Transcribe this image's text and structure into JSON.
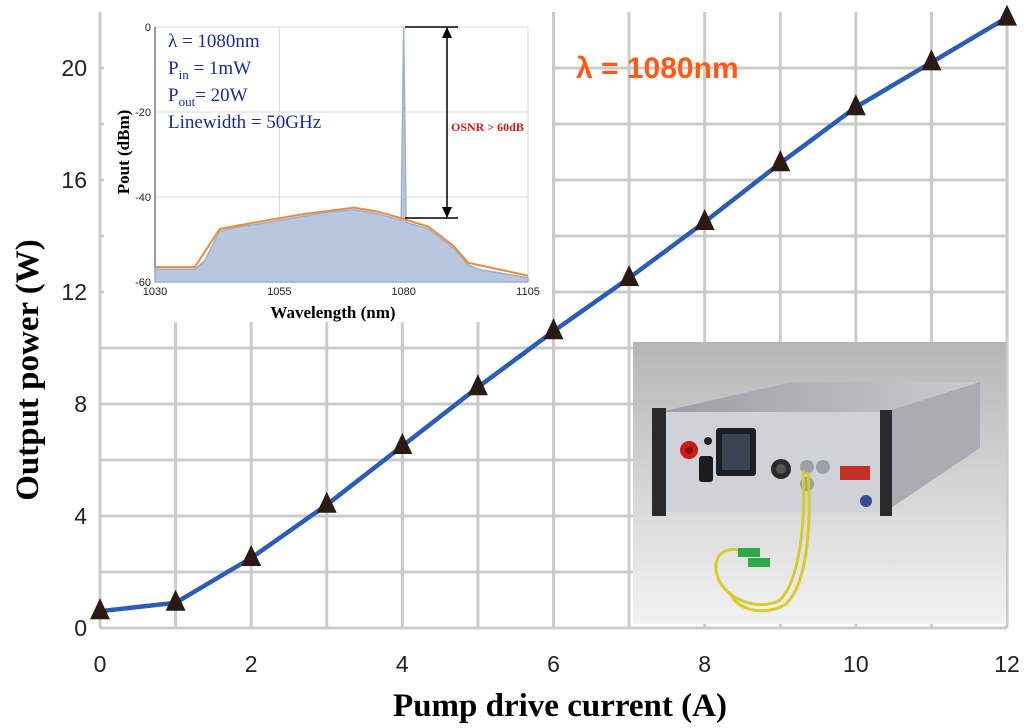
{
  "chart_data": [
    {
      "type": "line",
      "xlabel": "Pump drive current (A)",
      "ylabel": "Output power (W)",
      "xlim": [
        0,
        12
      ],
      "ylim": [
        0,
        22
      ],
      "xticks": [
        0,
        2,
        4,
        6,
        8,
        10,
        12
      ],
      "yticks": [
        0,
        4,
        8,
        12,
        16,
        20
      ],
      "grid": true,
      "annotation": "λ = 1080nm",
      "series": [
        {
          "x": [
            0,
            1,
            2,
            3,
            4,
            5,
            6,
            7,
            8,
            9,
            10,
            11,
            12
          ],
          "y": [
            0.6,
            0.9,
            2.5,
            4.4,
            6.5,
            8.6,
            10.6,
            12.5,
            14.5,
            16.6,
            18.6,
            20.2,
            21.8
          ],
          "color": "#2a5cb8",
          "marker": "triangle",
          "marker_color": "#2b1a12"
        }
      ]
    },
    {
      "type": "line",
      "xlabel": "Wavelength (nm)",
      "ylabel": "Pout (dBm)",
      "xlim": [
        1030,
        1105
      ],
      "ylim": [
        -60,
        0
      ],
      "xticks": [
        1030,
        1055,
        1080,
        1105
      ],
      "yticks": [
        0,
        -20,
        -40,
        -60
      ],
      "annotation_lines": [
        {
          "main": "λ  = 1080nm",
          "sub": "",
          "tail": ""
        },
        {
          "main": "P",
          "sub": "in",
          "tail": " = 1mW"
        },
        {
          "main": "P",
          "sub": "out",
          "tail": "= 20W"
        },
        {
          "main": "Linewidth = 50GHz",
          "sub": "",
          "tail": ""
        }
      ],
      "osnr_label": "OSNR > 60dB",
      "series": [
        {
          "x": [
            1030,
            1035,
            1038,
            1040,
            1043,
            1047,
            1050,
            1055,
            1060,
            1065,
            1070,
            1075,
            1079.5,
            1080,
            1080.5,
            1085,
            1090,
            1093,
            1095,
            1100,
            1105
          ],
          "y": [
            -57,
            -57,
            -57,
            -55,
            -48,
            -47,
            -46.5,
            -45.5,
            -44.5,
            -43.5,
            -43,
            -44,
            -45.5,
            0,
            -46,
            -47.5,
            -52,
            -56,
            -57,
            -58,
            -59
          ],
          "color": "#9ab0d4"
        },
        {
          "x": [
            1030,
            1038,
            1043,
            1050,
            1060,
            1070,
            1075,
            1079.5,
            1085,
            1090,
            1093,
            1105
          ],
          "y": [
            -56.5,
            -56.5,
            -47.5,
            -46,
            -44,
            -42.5,
            -43.5,
            -45,
            -47,
            -51.5,
            -55.5,
            -58.5
          ],
          "color": "#f08a3a"
        }
      ]
    }
  ]
}
